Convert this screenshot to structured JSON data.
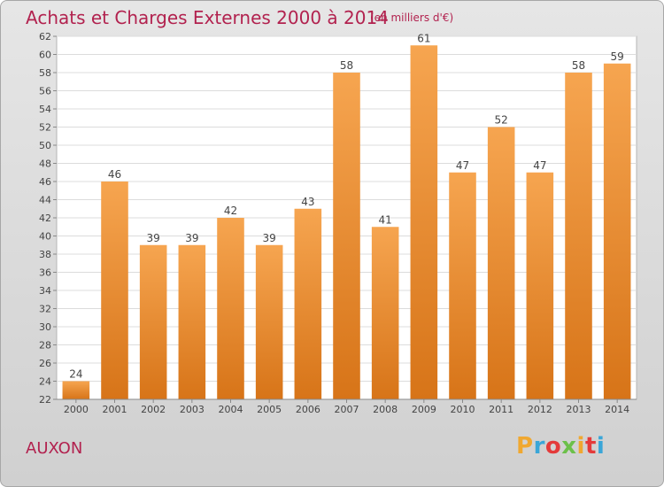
{
  "header": {
    "title": "Achats et Charges Externes 2000 à 2014",
    "subtitle": "(en milliers d'€)"
  },
  "footer": {
    "town": "AUXON",
    "brand": "Proxiti",
    "brand_letter_colors": [
      "#f0a830",
      "#3aa6d8",
      "#e43a3a",
      "#6cc04a",
      "#f0a830",
      "#e43a3a",
      "#3aa6d8"
    ]
  },
  "chart_data": {
    "type": "bar",
    "categories": [
      "2000",
      "2001",
      "2002",
      "2003",
      "2004",
      "2005",
      "2006",
      "2007",
      "2008",
      "2009",
      "2010",
      "2011",
      "2012",
      "2013",
      "2014"
    ],
    "values": [
      24,
      46,
      39,
      39,
      42,
      39,
      43,
      58,
      41,
      61,
      47,
      52,
      47,
      58,
      59
    ],
    "ylim": [
      22,
      62
    ],
    "ytick_step": 2,
    "grid": true,
    "bar_color_top": "#f6a550",
    "bar_color_bottom": "#d77418",
    "background": "#ffffff"
  }
}
